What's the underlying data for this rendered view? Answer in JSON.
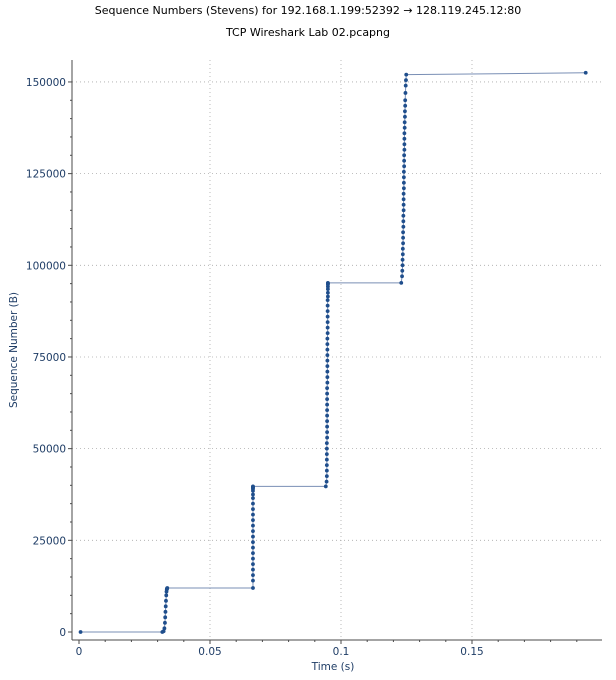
{
  "chart_data": {
    "type": "scatter",
    "title": "Sequence Numbers (Stevens) for 192.168.1.199:52392 → 128.119.245.12:80",
    "subtitle": "TCP Wireshark Lab 02.pcapng",
    "xlabel": "Time (s)",
    "ylabel": "Sequence Number (B)",
    "xlim": [
      0,
      0.2
    ],
    "ylim": [
      0,
      155000
    ],
    "x_ticks": [
      0,
      0.05,
      0.1,
      0.15
    ],
    "x_tick_labels": [
      "0",
      "0.05",
      "0.1",
      "0.15"
    ],
    "y_ticks": [
      0,
      25000,
      50000,
      75000,
      100000,
      125000,
      150000
    ],
    "y_tick_labels": [
      "0",
      "25000",
      "50000",
      "75000",
      "100000",
      "125000",
      "150000"
    ],
    "grid": true,
    "colors": {
      "points": "#1f4e8c",
      "line": "#7a8fb5",
      "axis_text": "#1f3d66",
      "grid": "#aaaaaa"
    },
    "series": [
      {
        "x": [
          0.0006,
          0.0318,
          0.0323,
          0.0326,
          0.0328,
          0.0329,
          0.033,
          0.0331,
          0.0332,
          0.0333,
          0.0334,
          0.0335,
          0.0336,
          0.0336,
          0.0337,
          0.0664,
          0.0664,
          0.0664,
          0.0664,
          0.0664,
          0.0664,
          0.0664,
          0.0664,
          0.0664,
          0.0664,
          0.0664,
          0.0664,
          0.0664,
          0.0664,
          0.0664,
          0.0664,
          0.0664,
          0.0664,
          0.0664,
          0.0664,
          0.0664,
          0.0664,
          0.0664,
          0.0664,
          0.0942,
          0.0945,
          0.0946,
          0.0946,
          0.0946,
          0.0946,
          0.0946,
          0.0946,
          0.0946,
          0.0947,
          0.0947,
          0.0947,
          0.0947,
          0.0947,
          0.0947,
          0.0947,
          0.0947,
          0.0947,
          0.0947,
          0.0948,
          0.0948,
          0.0948,
          0.0948,
          0.0948,
          0.0948,
          0.0948,
          0.0948,
          0.0948,
          0.0949,
          0.0949,
          0.0949,
          0.0949,
          0.0949,
          0.0949,
          0.0949,
          0.095,
          0.095,
          0.095,
          0.095,
          0.095,
          0.095,
          0.095,
          0.095,
          0.123,
          0.1233,
          0.1234,
          0.1235,
          0.1235,
          0.1236,
          0.1236,
          0.1237,
          0.1237,
          0.1237,
          0.1238,
          0.1238,
          0.1238,
          0.1239,
          0.1239,
          0.1239,
          0.1239,
          0.124,
          0.124,
          0.124,
          0.124,
          0.1241,
          0.1241,
          0.1241,
          0.1242,
          0.1242,
          0.1242,
          0.1242,
          0.1243,
          0.1243,
          0.1244,
          0.1244,
          0.1245,
          0.1245,
          0.1246,
          0.1247,
          0.1248,
          0.1249,
          0.1934
        ],
        "y": [
          0,
          0,
          200,
          1000,
          2500,
          4000,
          5500,
          7000,
          8500,
          10000,
          11000,
          11600,
          11800,
          11900,
          12000,
          12000,
          14000,
          15500,
          17000,
          18500,
          20000,
          21500,
          23000,
          24500,
          26000,
          27500,
          29000,
          30500,
          32000,
          33500,
          35000,
          36500,
          37500,
          38500,
          39000,
          39300,
          39500,
          39600,
          39700,
          39700,
          41000,
          42500,
          44000,
          45500,
          47000,
          48500,
          50000,
          51500,
          53000,
          54500,
          56000,
          57500,
          59000,
          60500,
          62000,
          63500,
          65000,
          66500,
          68000,
          69500,
          71000,
          72500,
          74000,
          75500,
          77000,
          78500,
          80000,
          81500,
          83000,
          84500,
          86000,
          87500,
          89000,
          90500,
          91500,
          92500,
          93500,
          94200,
          94800,
          95000,
          95100,
          95200,
          95200,
          97000,
          98500,
          100000,
          101500,
          103000,
          104500,
          106000,
          107500,
          109000,
          110500,
          112000,
          113500,
          115000,
          116500,
          118000,
          119500,
          121000,
          122500,
          124000,
          125500,
          127000,
          128500,
          130000,
          131500,
          133000,
          134500,
          136000,
          137500,
          139000,
          140500,
          142000,
          143500,
          145000,
          147000,
          149000,
          150500,
          152000,
          152500
        ]
      }
    ]
  }
}
